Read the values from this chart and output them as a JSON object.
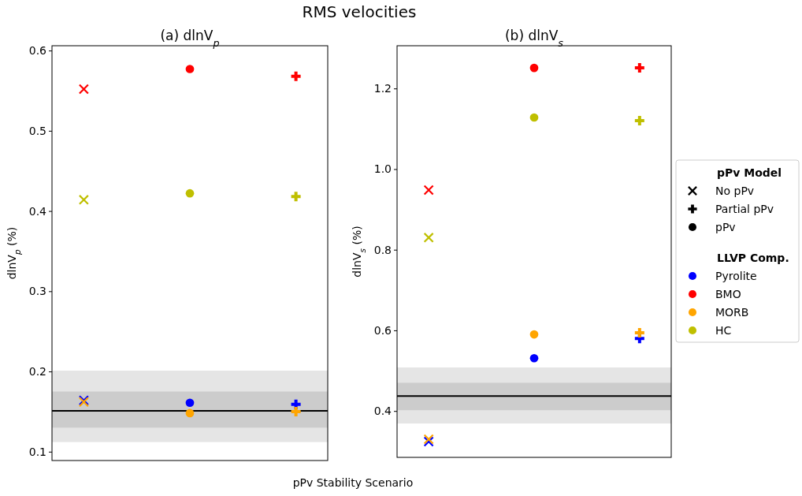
{
  "chart_data": [
    {
      "type": "scatter",
      "title": "RMS velocities",
      "subtitle": "(a) dlnV$_{p}$",
      "xlabel": "pPv Stability Scenario",
      "ylabel": "dlnV$_{p}$ (%)",
      "categories": [
        null,
        null,
        null
      ],
      "tick_labels": "y",
      "grid": false,
      "legend": false,
      "ylim": [
        0.089,
        0.606
      ],
      "yticks": [
        0.1,
        0.2,
        0.3,
        0.4,
        0.5,
        0.6
      ],
      "series": [
        {
          "color": "#0000ff",
          "marker": [
            "x",
            "circle",
            "plus"
          ],
          "values": [
            0.164,
            0.161,
            0.159
          ]
        },
        {
          "color": "#ff0000",
          "marker": [
            "x",
            "circle",
            "plus"
          ],
          "values": [
            0.552,
            0.577,
            0.568
          ]
        },
        {
          "color": "#ffa500",
          "marker": [
            "x",
            "circle",
            "plus"
          ],
          "values": [
            0.162,
            0.148,
            0.15
          ]
        },
        {
          "color": "#bfbf00",
          "marker": [
            "x",
            "circle",
            "plus"
          ],
          "values": [
            0.414,
            0.422,
            0.418
          ]
        }
      ],
      "bands": [
        {
          "axis": "y",
          "from": 0.112,
          "to": 0.201,
          "color": "#e5e5e5"
        },
        {
          "axis": "y",
          "from": 0.13,
          "to": 0.175,
          "color": "#cccccc"
        }
      ],
      "ref_lines": [
        {
          "axis": "y",
          "value": 0.151,
          "color": "#000000"
        }
      ]
    },
    {
      "type": "scatter",
      "subtitle": "(b) dlnV$_{s}$",
      "ylabel": "dlnV$_{s}$ (%)",
      "categories": [
        null,
        null,
        null
      ],
      "tick_labels": "y",
      "grid": false,
      "legend": "right",
      "legend_title": [
        "pPv Model",
        "LLVP Comp."
      ],
      "ylim": [
        0.285,
        1.306
      ],
      "yticks": [
        0.4,
        0.6,
        0.8,
        {
          "value": 1,
          "label": "1.0"
        },
        1.2
      ],
      "series": [
        {
          "name": "No pPv",
          "color": "#000000",
          "marker": "x",
          "values": [
            null,
            null,
            null
          ]
        },
        {
          "name": "Partial pPv",
          "color": "#000000",
          "marker": "plus",
          "values": [
            null,
            null,
            null
          ]
        },
        {
          "name": "pPv",
          "color": "#000000",
          "marker": "circle",
          "values": [
            null,
            null,
            null
          ]
        },
        {
          "name": "Pyrolite",
          "color": "#0000ff",
          "marker": [
            "x",
            "circle",
            "plus"
          ],
          "values": [
            0.324,
            0.531,
            0.58
          ]
        },
        {
          "name": "BMO",
          "color": "#ff0000",
          "marker": [
            "x",
            "circle",
            "plus"
          ],
          "values": [
            0.948,
            1.251,
            1.251
          ]
        },
        {
          "name": "MORB",
          "color": "#ffa500",
          "marker": [
            "x",
            "circle",
            "plus"
          ],
          "values": [
            0.33,
            0.59,
            0.594
          ]
        },
        {
          "name": "HC",
          "color": "#bfbf00",
          "marker": [
            "x",
            "circle",
            "plus"
          ],
          "values": [
            0.83,
            1.128,
            1.12
          ]
        }
      ],
      "bands": [
        {
          "axis": "y",
          "from": 0.369,
          "to": 0.508,
          "color": "#e5e5e5"
        },
        {
          "axis": "y",
          "from": 0.402,
          "to": 0.47,
          "color": "#cccccc"
        }
      ],
      "ref_lines": [
        {
          "axis": "y",
          "value": 0.437,
          "color": "#000000"
        }
      ]
    }
  ]
}
